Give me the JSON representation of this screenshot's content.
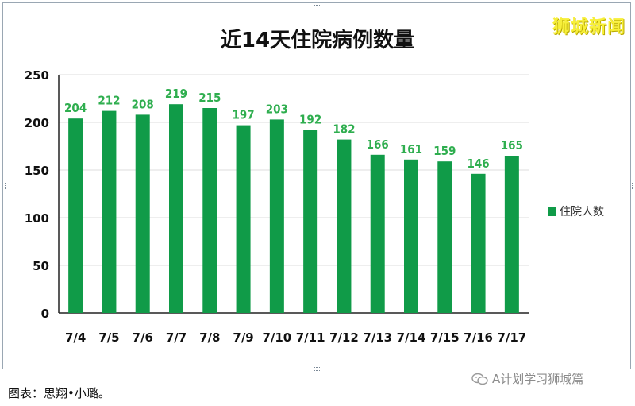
{
  "chart_data": {
    "type": "bar",
    "title": "近14天住院病例数量",
    "categories": [
      "7/4",
      "7/5",
      "7/6",
      "7/7",
      "7/8",
      "7/9",
      "7/10",
      "7/11",
      "7/12",
      "7/13",
      "7/14",
      "7/15",
      "7/16",
      "7/17"
    ],
    "series": [
      {
        "name": "住院人数",
        "values": [
          204,
          212,
          208,
          219,
          215,
          197,
          203,
          192,
          182,
          166,
          161,
          159,
          146,
          165
        ]
      }
    ],
    "ylim": [
      0,
      250
    ],
    "yticks": [
      0,
      50,
      100,
      150,
      200,
      250
    ],
    "grid": true,
    "legend_position": "right",
    "bar_color": "#109b48",
    "label_color": "#2fae4f"
  },
  "watermark": "狮城新闻",
  "caption": "图表：思翔•小璐。",
  "footer_source": "A计划学习狮城篇"
}
